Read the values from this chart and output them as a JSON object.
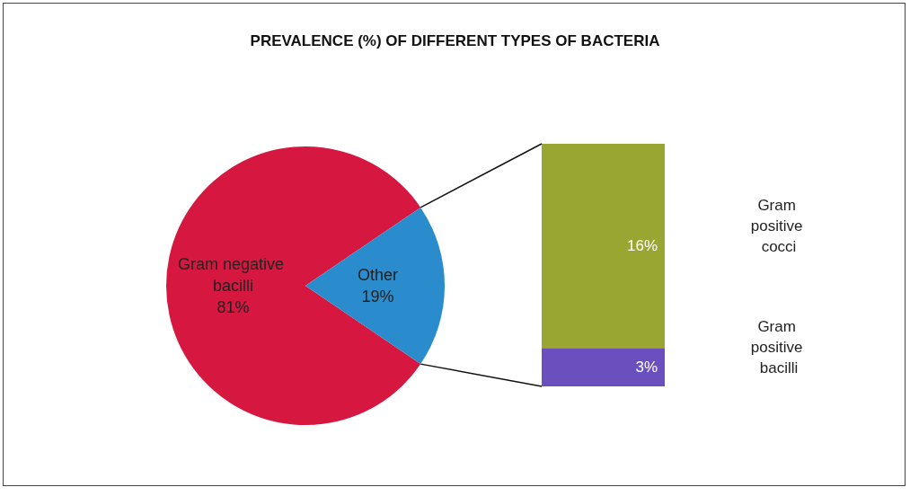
{
  "chart_data": [
    {
      "type": "pie",
      "title": "PREVALENCE (%) OF DIFFERENT TYPES OF BACTERIA",
      "categories": [
        "Gram negative bacilli",
        "Other"
      ],
      "values": [
        81,
        19
      ],
      "colors": [
        "#d6173f",
        "#2a8ccc"
      ],
      "value_labels": [
        "81%",
        "19%"
      ],
      "legend": false
    },
    {
      "type": "bar",
      "stacked": true,
      "categories": [
        null
      ],
      "legend": false,
      "series": [
        {
          "name": "Gram positive bacilli",
          "color": "#6a4fbf",
          "values": [
            3
          ],
          "value_labels": [
            "3%"
          ]
        },
        {
          "name": "Gram positive cocci",
          "color": "#9aa632",
          "values": [
            16
          ],
          "value_labels": [
            "16%"
          ]
        }
      ]
    }
  ]
}
